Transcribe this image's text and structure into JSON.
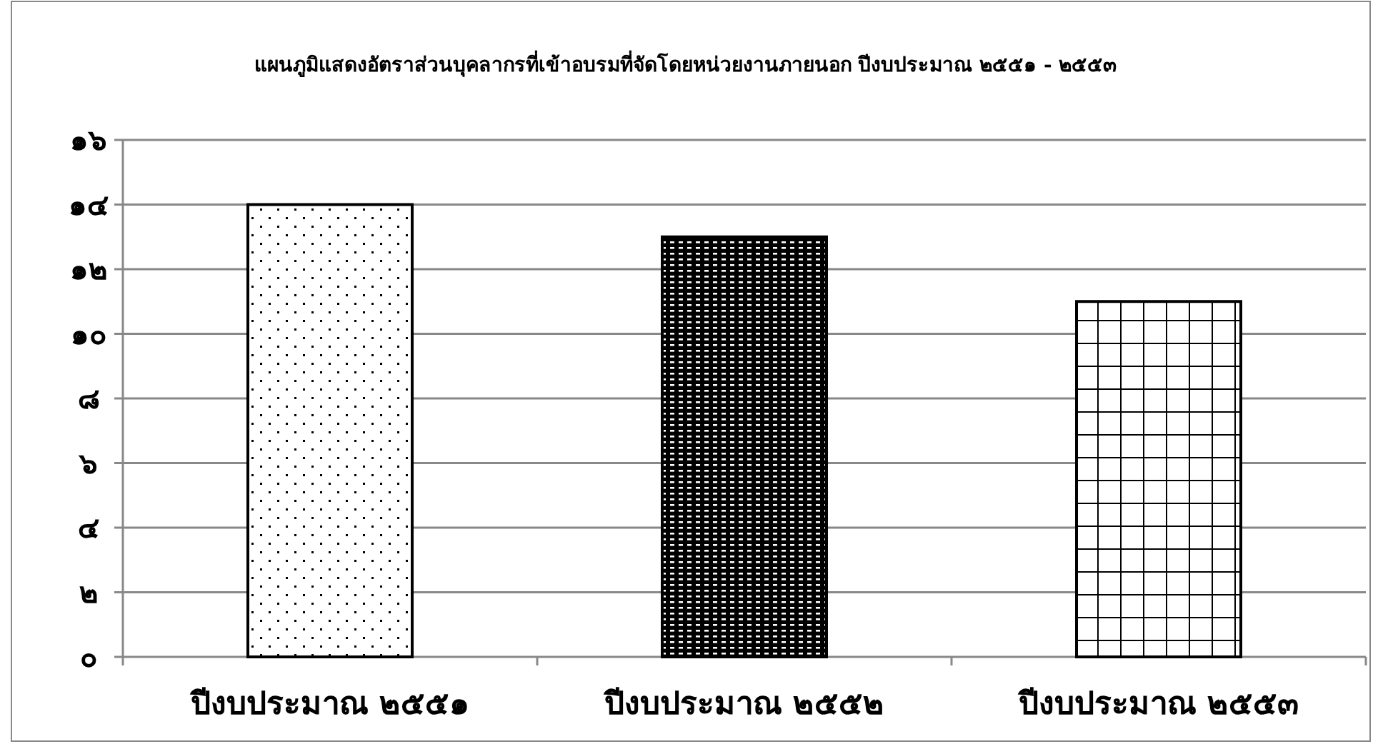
{
  "chart_data": {
    "type": "bar",
    "title": "แผนภูมิแสดงอัตราส่วนบุคลากรที่เข้าอบรมที่จัดโดยหน่วยงานภายนอก ปีงบประมาณ ๒๕๕๑ - ๒๕๕๓",
    "categories": [
      "ปีงบประมาณ ๒๕๕๑",
      "ปีงบประมาณ ๒๕๕๒",
      "ปีงบประมาณ ๒๕๕๓"
    ],
    "values": [
      14,
      13,
      11
    ],
    "color": "#000000",
    "ylim": [
      0,
      16
    ],
    "yticks": [
      {
        "value": 0,
        "label": "๐"
      },
      {
        "value": 2,
        "label": "๒"
      },
      {
        "value": 4,
        "label": "๔"
      },
      {
        "value": 6,
        "label": "๖"
      },
      {
        "value": 8,
        "label": "๘"
      },
      {
        "value": 10,
        "label": "๑๐"
      },
      {
        "value": 12,
        "label": "๑๒"
      },
      {
        "value": 14,
        "label": "๑๔"
      },
      {
        "value": 16,
        "label": "๑๖"
      }
    ],
    "grid": "y"
  }
}
